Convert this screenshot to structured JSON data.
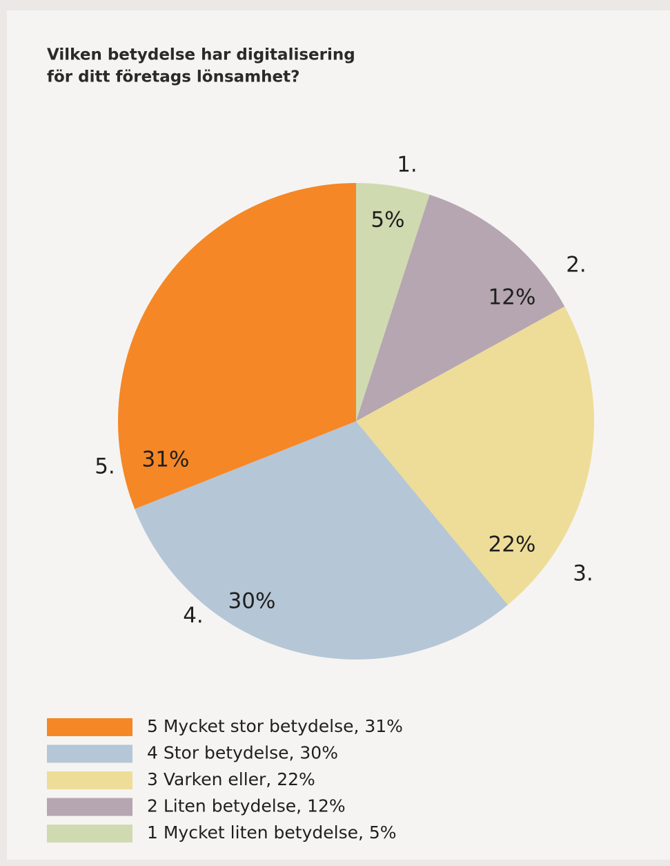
{
  "chart_data": {
    "type": "pie",
    "title": [
      "Vilken betydelse har digitalisering",
      "för ditt företags lönsamhet?"
    ],
    "categories": [
      "1.",
      "2.",
      "3.",
      "4.",
      "5."
    ],
    "values": [
      5,
      12,
      22,
      30,
      31
    ],
    "value_labels": [
      "5%",
      "12%",
      "22%",
      "30%",
      "31%"
    ],
    "colors": [
      "#d0dab0",
      "#b5a6b1",
      "#eedd98",
      "#b5c6d6",
      "#f58726"
    ],
    "legend": [
      "5 Mycket stor betydelse, 31%",
      "4 Stor betydelse, 30%",
      "3 Varken eller, 22%",
      "2 Liten betydelse, 12%",
      "1 Mycket liten betydelse, 5%"
    ]
  }
}
